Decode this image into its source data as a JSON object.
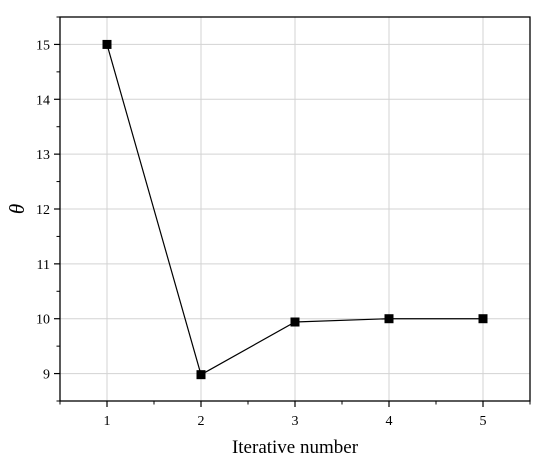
{
  "chart_data": {
    "type": "line",
    "title": "",
    "xlabel": "Iterative number",
    "ylabel": "θ",
    "x": [
      1,
      2,
      3,
      4,
      5
    ],
    "series": [
      {
        "values": [
          15.0,
          8.98,
          9.94,
          10.0,
          10.0
        ]
      }
    ],
    "xlim": [
      0.5,
      5.5
    ],
    "ylim": [
      8.5,
      15.5
    ],
    "x_ticks": [
      "1",
      "2",
      "3",
      "4",
      "5"
    ],
    "y_ticks": [
      "9",
      "10",
      "11",
      "12",
      "13",
      "14",
      "15"
    ],
    "grid": true,
    "marker": "square",
    "line_color": "#000000",
    "grid_color": "#d3d3d3"
  }
}
